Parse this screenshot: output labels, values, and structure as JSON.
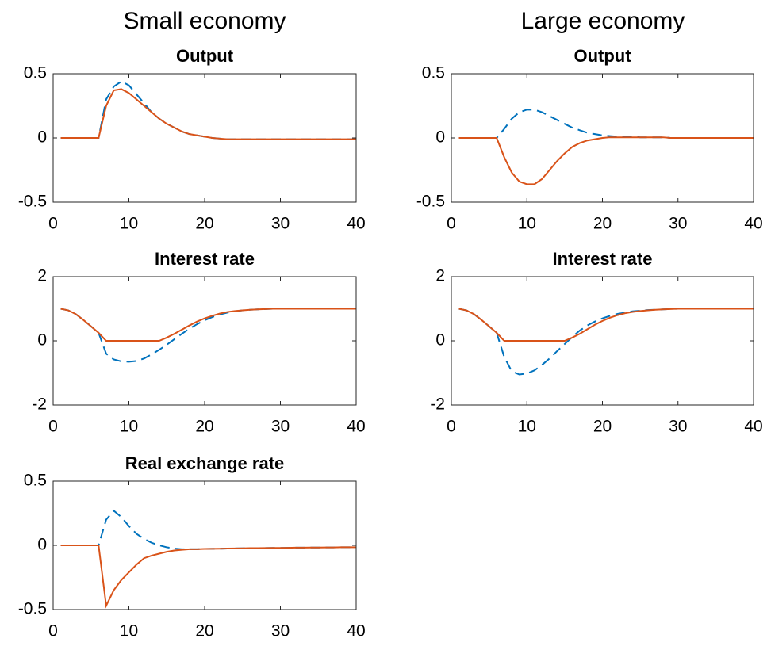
{
  "column_titles": [
    "Small economy",
    "Large economy"
  ],
  "chart_data": [
    {
      "type": "line",
      "title": "Output",
      "x": [
        1,
        2,
        3,
        4,
        5,
        6,
        7,
        8,
        9,
        10,
        11,
        12,
        13,
        14,
        15,
        16,
        17,
        18,
        19,
        20,
        21,
        22,
        23,
        24,
        25,
        26,
        27,
        28,
        29,
        30,
        31,
        32,
        33,
        34,
        35,
        36,
        37,
        38,
        39,
        40
      ],
      "series": [
        {
          "color": "#0072bd",
          "line_style": "dashed",
          "values": [
            0,
            0,
            0,
            0,
            0,
            0,
            0.3,
            0.4,
            0.44,
            0.41,
            0.34,
            0.27,
            0.2,
            0.15,
            0.11,
            0.08,
            0.05,
            0.03,
            0.02,
            0.01,
            0,
            -0.005,
            -0.01,
            -0.01,
            -0.01,
            -0.01,
            -0.01,
            -0.01,
            -0.01,
            -0.01,
            -0.01,
            -0.01,
            -0.01,
            -0.01,
            -0.01,
            -0.01,
            -0.01,
            -0.01,
            -0.01,
            -0.01
          ]
        },
        {
          "color": "#d95319",
          "line_style": "solid",
          "values": [
            0,
            0,
            0,
            0,
            0,
            0,
            0.25,
            0.37,
            0.38,
            0.35,
            0.3,
            0.25,
            0.2,
            0.15,
            0.11,
            0.08,
            0.05,
            0.03,
            0.02,
            0.01,
            0,
            -0.005,
            -0.01,
            -0.01,
            -0.01,
            -0.01,
            -0.01,
            -0.01,
            -0.01,
            -0.01,
            -0.01,
            -0.01,
            -0.01,
            -0.01,
            -0.01,
            -0.01,
            -0.01,
            -0.01,
            -0.01,
            -0.01
          ]
        }
      ],
      "xlim": [
        0,
        40
      ],
      "xticks": [
        0,
        10,
        20,
        30,
        40
      ],
      "ylim": [
        -0.5,
        0.5
      ],
      "yticks": [
        -0.5,
        0,
        0.5
      ]
    },
    {
      "type": "line",
      "title": "Output",
      "x": [
        1,
        2,
        3,
        4,
        5,
        6,
        7,
        8,
        9,
        10,
        11,
        12,
        13,
        14,
        15,
        16,
        17,
        18,
        19,
        20,
        21,
        22,
        23,
        24,
        25,
        26,
        27,
        28,
        29,
        30,
        31,
        32,
        33,
        34,
        35,
        36,
        37,
        38,
        39,
        40
      ],
      "series": [
        {
          "color": "#0072bd",
          "line_style": "dashed",
          "values": [
            0,
            0,
            0,
            0,
            0,
            0,
            0.07,
            0.15,
            0.2,
            0.22,
            0.22,
            0.2,
            0.17,
            0.14,
            0.11,
            0.08,
            0.06,
            0.04,
            0.03,
            0.02,
            0.015,
            0.01,
            0.01,
            0.01,
            0.005,
            0.005,
            0.005,
            0.005,
            0,
            0,
            0,
            0,
            0,
            0,
            0,
            0,
            0,
            0,
            0,
            0
          ]
        },
        {
          "color": "#d95319",
          "line_style": "solid",
          "values": [
            0,
            0,
            0,
            0,
            0,
            0,
            -0.15,
            -0.27,
            -0.34,
            -0.36,
            -0.36,
            -0.32,
            -0.25,
            -0.18,
            -0.12,
            -0.07,
            -0.04,
            -0.02,
            -0.01,
            0,
            0.005,
            0.005,
            0.005,
            0.005,
            0.005,
            0.005,
            0.005,
            0.005,
            0,
            0,
            0,
            0,
            0,
            0,
            0,
            0,
            0,
            0,
            0,
            0
          ]
        }
      ],
      "xlim": [
        0,
        40
      ],
      "xticks": [
        0,
        10,
        20,
        30,
        40
      ],
      "ylim": [
        -0.5,
        0.5
      ],
      "yticks": [
        -0.5,
        0,
        0.5
      ]
    },
    {
      "type": "line",
      "title": "Interest rate",
      "x": [
        1,
        2,
        3,
        4,
        5,
        6,
        7,
        8,
        9,
        10,
        11,
        12,
        13,
        14,
        15,
        16,
        17,
        18,
        19,
        20,
        21,
        22,
        23,
        24,
        25,
        26,
        27,
        28,
        29,
        30,
        31,
        32,
        33,
        34,
        35,
        36,
        37,
        38,
        39,
        40
      ],
      "series": [
        {
          "color": "#0072bd",
          "line_style": "dashed",
          "values": [
            1,
            0.95,
            0.83,
            0.65,
            0.45,
            0.25,
            -0.4,
            -0.58,
            -0.64,
            -0.65,
            -0.63,
            -0.55,
            -0.42,
            -0.28,
            -0.12,
            0.05,
            0.22,
            0.38,
            0.52,
            0.64,
            0.74,
            0.82,
            0.88,
            0.92,
            0.95,
            0.97,
            0.98,
            0.99,
            1,
            1,
            1,
            1,
            1,
            1,
            1,
            1,
            1,
            1,
            1,
            1
          ]
        },
        {
          "color": "#d95319",
          "line_style": "solid",
          "values": [
            1,
            0.95,
            0.83,
            0.65,
            0.45,
            0.25,
            0,
            0,
            0,
            0,
            0,
            0,
            0,
            0,
            0.1,
            0.22,
            0.35,
            0.48,
            0.6,
            0.7,
            0.78,
            0.85,
            0.9,
            0.93,
            0.95,
            0.97,
            0.98,
            0.99,
            1,
            1,
            1,
            1,
            1,
            1,
            1,
            1,
            1,
            1,
            1,
            1
          ]
        }
      ],
      "xlim": [
        0,
        40
      ],
      "xticks": [
        0,
        10,
        20,
        30,
        40
      ],
      "ylim": [
        -2,
        2
      ],
      "yticks": [
        -2,
        0,
        2
      ]
    },
    {
      "type": "line",
      "title": "Interest rate",
      "x": [
        1,
        2,
        3,
        4,
        5,
        6,
        7,
        8,
        9,
        10,
        11,
        12,
        13,
        14,
        15,
        16,
        17,
        18,
        19,
        20,
        21,
        22,
        23,
        24,
        25,
        26,
        27,
        28,
        29,
        30,
        31,
        32,
        33,
        34,
        35,
        36,
        37,
        38,
        39,
        40
      ],
      "series": [
        {
          "color": "#0072bd",
          "line_style": "dashed",
          "values": [
            1,
            0.95,
            0.83,
            0.65,
            0.45,
            0.25,
            -0.5,
            -0.95,
            -1.05,
            -1.02,
            -0.92,
            -0.75,
            -0.55,
            -0.32,
            -0.1,
            0.12,
            0.32,
            0.48,
            0.6,
            0.7,
            0.78,
            0.84,
            0.88,
            0.92,
            0.94,
            0.96,
            0.97,
            0.98,
            0.99,
            1,
            1,
            1,
            1,
            1,
            1,
            1,
            1,
            1,
            1,
            1
          ]
        },
        {
          "color": "#d95319",
          "line_style": "solid",
          "values": [
            1,
            0.95,
            0.83,
            0.65,
            0.45,
            0.25,
            0,
            0,
            0,
            0,
            0,
            0,
            0,
            0,
            0,
            0.1,
            0.22,
            0.36,
            0.5,
            0.62,
            0.72,
            0.8,
            0.86,
            0.9,
            0.93,
            0.95,
            0.97,
            0.98,
            0.99,
            1,
            1,
            1,
            1,
            1,
            1,
            1,
            1,
            1,
            1,
            1
          ]
        }
      ],
      "xlim": [
        0,
        40
      ],
      "xticks": [
        0,
        10,
        20,
        30,
        40
      ],
      "ylim": [
        -2,
        2
      ],
      "yticks": [
        -2,
        0,
        2
      ]
    },
    {
      "type": "line",
      "title": "Real exchange rate",
      "x": [
        1,
        2,
        3,
        4,
        5,
        6,
        7,
        8,
        9,
        10,
        11,
        12,
        13,
        14,
        15,
        16,
        17,
        18,
        19,
        20,
        21,
        22,
        23,
        24,
        25,
        26,
        27,
        28,
        29,
        30,
        31,
        32,
        33,
        34,
        35,
        36,
        37,
        38,
        39,
        40
      ],
      "series": [
        {
          "color": "#0072bd",
          "line_style": "dashed",
          "values": [
            0,
            0,
            0,
            0,
            0,
            0,
            0.2,
            0.27,
            0.22,
            0.15,
            0.09,
            0.05,
            0.02,
            0,
            -0.015,
            -0.025,
            -0.03,
            -0.03,
            -0.03,
            -0.028,
            -0.027,
            -0.026,
            -0.025,
            -0.024,
            -0.023,
            -0.022,
            -0.022,
            -0.021,
            -0.02,
            -0.02,
            -0.019,
            -0.018,
            -0.018,
            -0.017,
            -0.017,
            -0.016,
            -0.016,
            -0.015,
            -0.015,
            -0.015
          ]
        },
        {
          "color": "#d95319",
          "line_style": "solid",
          "values": [
            0,
            0,
            0,
            0,
            0,
            0,
            -0.47,
            -0.35,
            -0.27,
            -0.21,
            -0.15,
            -0.1,
            -0.08,
            -0.065,
            -0.05,
            -0.04,
            -0.035,
            -0.03,
            -0.03,
            -0.028,
            -0.027,
            -0.026,
            -0.025,
            -0.024,
            -0.023,
            -0.022,
            -0.022,
            -0.021,
            -0.02,
            -0.02,
            -0.019,
            -0.018,
            -0.018,
            -0.017,
            -0.017,
            -0.016,
            -0.016,
            -0.015,
            -0.015,
            -0.015
          ]
        }
      ],
      "xlim": [
        0,
        40
      ],
      "xticks": [
        0,
        10,
        20,
        30,
        40
      ],
      "ylim": [
        -0.5,
        0.5
      ],
      "yticks": [
        -0.5,
        0,
        0.5
      ]
    }
  ]
}
